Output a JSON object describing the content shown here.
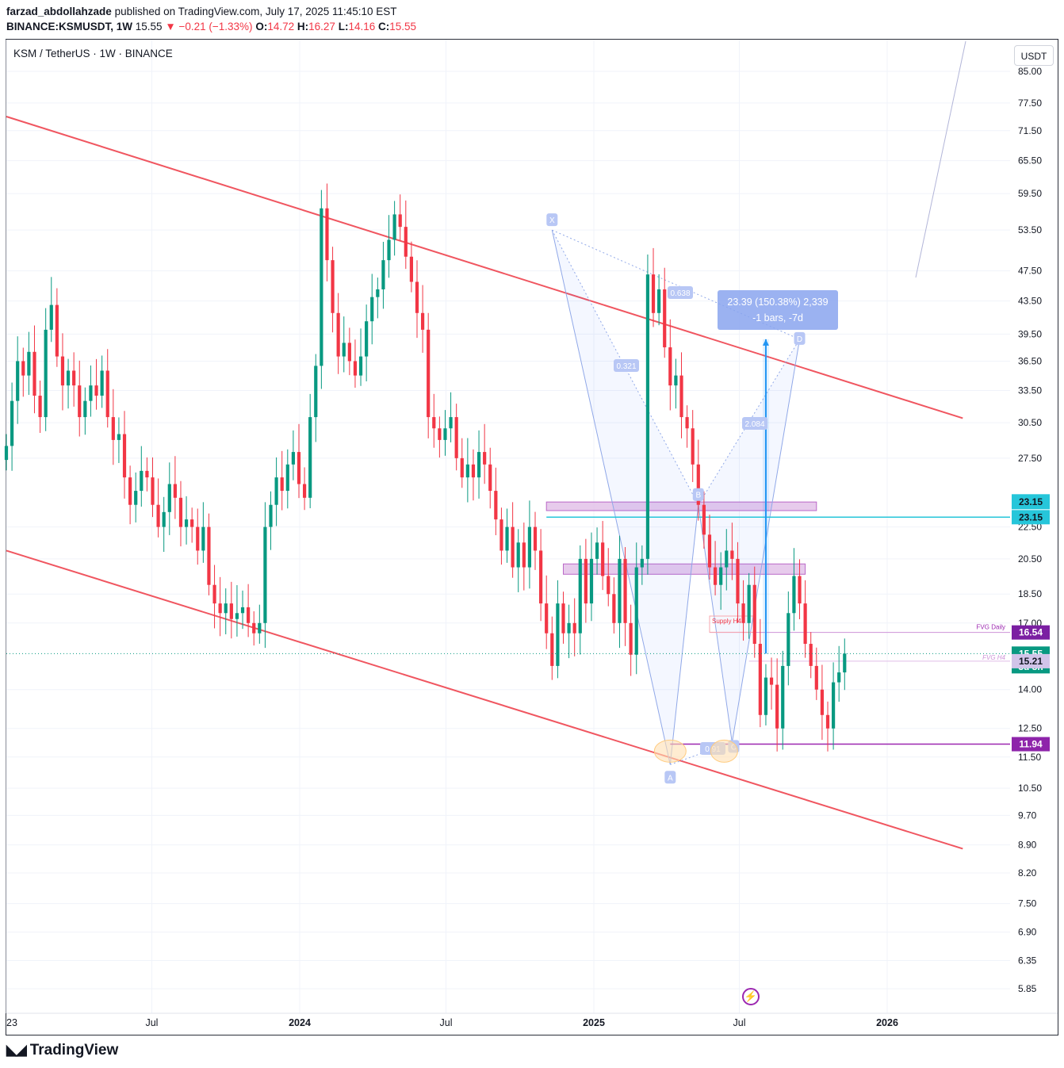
{
  "header": {
    "author": "farzad_abdollahzade",
    "published_text": "published on TradingView.com, July 17, 2025 11:45:10 EST",
    "symbol": "BINANCE:KSMUSDT, 1W",
    "last": "15.55",
    "change": "−0.21 (−1.33%)",
    "open_label": "O:",
    "open": "14.72",
    "high_label": "H:",
    "high": "16.27",
    "low_label": "L:",
    "low": "14.16",
    "close_label": "C:",
    "close": "15.55"
  },
  "legend": {
    "title": "KSM / TetherUS · 1W · BINANCE"
  },
  "unit_button": "USDT",
  "footer": {
    "brand": "TradingView"
  },
  "colors": {
    "up": "#089981",
    "down": "#f23645",
    "channel": "#f05660",
    "pattern": "#90a8e8",
    "zone": "#e1bee7",
    "teal": "#26c6da",
    "purple": "#9c27b0"
  },
  "chart_data": {
    "type": "candlestick",
    "y_scale": "log",
    "ylim": [
      5.5,
      92
    ],
    "y_ticks": [
      "85.00",
      "77.50",
      "71.50",
      "65.50",
      "59.50",
      "53.50",
      "47.50",
      "43.50",
      "39.50",
      "36.50",
      "33.50",
      "30.50",
      "27.50",
      "22.50",
      "20.50",
      "18.50",
      "17.00",
      "14.00",
      "12.50",
      "11.50",
      "10.50",
      "9.70",
      "8.90",
      "8.20",
      "7.50",
      "6.90",
      "6.35",
      "5.85"
    ],
    "x_ticks": [
      {
        "label": "23",
        "date": "2023-01-01"
      },
      {
        "label": "Jul",
        "date": "2023-07-01"
      },
      {
        "label": "2024",
        "date": "2024-01-01"
      },
      {
        "label": "Jul",
        "date": "2024-07-01"
      },
      {
        "label": "2025",
        "date": "2025-01-01"
      },
      {
        "label": "Jul",
        "date": "2025-07-01"
      },
      {
        "label": "2026",
        "date": "2026-01-01"
      }
    ],
    "x_range": [
      "2023-01-01",
      "2026-05-01"
    ],
    "weekly_closes": [
      28.5,
      32.5,
      36.5,
      35,
      37.5,
      33,
      31,
      40,
      43,
      37,
      34,
      35.5,
      34,
      31,
      32.5,
      34,
      33,
      35.5,
      31,
      29,
      29.5,
      26,
      24,
      25,
      26.5,
      26,
      24,
      22.5,
      23.5,
      25.5,
      24.5,
      22.5,
      23,
      22.5,
      21,
      22.5,
      19,
      18,
      17.5,
      18,
      17.2,
      17.5,
      17.8,
      17,
      16.5,
      17,
      22.5,
      24,
      26,
      25,
      27,
      28,
      25.5,
      24.5,
      31,
      36,
      57,
      49,
      42,
      37,
      38.5,
      36.5,
      35,
      37,
      41,
      44,
      45,
      49,
      52,
      56,
      54,
      49.5,
      46,
      42,
      40,
      31,
      30,
      29,
      30,
      31,
      27.5,
      26,
      27,
      26,
      28,
      27,
      25,
      23,
      21,
      22.5,
      20,
      21.5,
      20,
      22.5,
      21,
      18,
      16.5,
      15,
      18,
      16.5,
      17,
      16.5,
      20.5,
      18,
      20.5,
      21.5,
      19.5,
      18.5,
      17,
      20.5,
      17,
      15.5,
      20,
      20.5,
      47,
      42,
      45,
      38,
      34,
      35,
      31,
      30,
      27,
      24,
      22,
      20,
      19,
      20,
      21,
      20.5,
      18,
      17,
      19,
      16,
      13,
      14.5,
      14.2,
      12.5,
      15,
      17.5,
      19.5,
      18,
      16,
      15,
      14,
      13,
      12.5,
      14.3,
      14.72,
      15.55
    ],
    "current_price": 15.55,
    "countdown": "3d 8h",
    "price_labels": [
      "23.15",
      "23.15",
      "16.54",
      "15.55",
      "3d 8h",
      "15.21",
      "11.94"
    ],
    "harmonic": {
      "points": [
        {
          "name": "X",
          "date": "2024-11-10",
          "price": 53.5
        },
        {
          "name": "A",
          "date": "2025-04-06",
          "price": 11.25
        },
        {
          "name": "B",
          "date": "2025-05-11",
          "price": 24.0
        },
        {
          "name": "C",
          "date": "2025-06-22",
          "price": 12.0
        },
        {
          "name": "D",
          "date": "2025-09-14",
          "price": 38.9
        }
      ],
      "ratios": [
        "0.638",
        "0.321",
        "2.084",
        "0.91"
      ]
    },
    "measure_label": [
      "23.39 (150.38%) 2,339",
      "-1 bars, -7d"
    ],
    "zones": [
      {
        "from": "2024-11-03",
        "to": "2025-10-05",
        "low": 23.6,
        "high": 24.2
      },
      {
        "from": "2024-11-24",
        "to": "2025-09-21",
        "low": 19.6,
        "high": 20.2
      }
    ],
    "levels": [
      {
        "label": "23.15",
        "price": 23.15
      },
      {
        "label": "16.54",
        "price": 16.54,
        "tag": "FVG Daily"
      },
      {
        "label": "15.21",
        "price": 15.21,
        "tag": "FVG H4"
      },
      {
        "label": "11.94",
        "price": 11.94
      }
    ],
    "annotations": [
      "Supply H4",
      "FVG Daily",
      "FVG H4"
    ]
  }
}
